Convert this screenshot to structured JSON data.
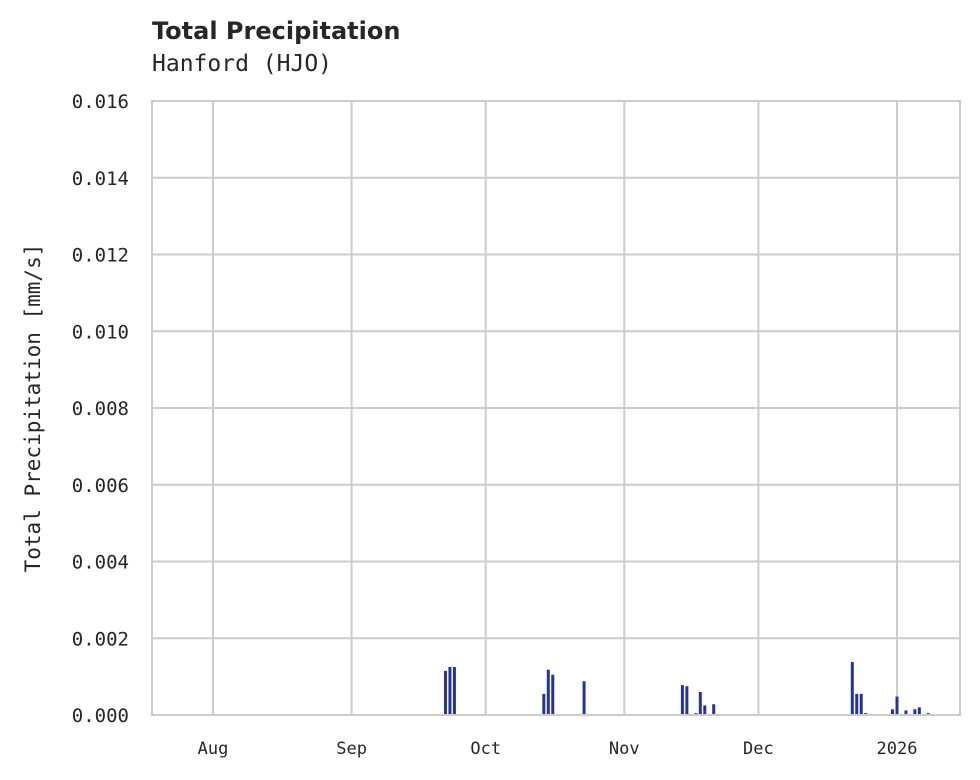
{
  "chart_data": {
    "type": "bar",
    "title": "Total Precipitation",
    "subtitle": "Hanford (HJO)",
    "xlabel": "",
    "ylabel": "Total Precipitation [mm/s]",
    "ylim": [
      0,
      0.016
    ],
    "yticks": [
      "0.000",
      "0.002",
      "0.004",
      "0.006",
      "0.008",
      "0.010",
      "0.012",
      "0.014",
      "0.016"
    ],
    "xticks": [
      "Aug",
      "Sep",
      "Oct",
      "Nov",
      "Dec",
      "2026"
    ],
    "grid": true,
    "legend": null,
    "series": [
      {
        "name": "Total Precipitation",
        "color": "#253494",
        "points": [
          {
            "date": "2025-09-22",
            "value": 0.00115
          },
          {
            "date": "2025-09-23",
            "value": 0.00125
          },
          {
            "date": "2025-09-24",
            "value": 0.00125
          },
          {
            "date": "2025-10-14",
            "value": 0.00055
          },
          {
            "date": "2025-10-15",
            "value": 0.00118
          },
          {
            "date": "2025-10-16",
            "value": 0.00105
          },
          {
            "date": "2025-10-23",
            "value": 0.00088
          },
          {
            "date": "2025-11-14",
            "value": 0.00078
          },
          {
            "date": "2025-11-15",
            "value": 0.00075
          },
          {
            "date": "2025-11-17",
            "value": 5e-05
          },
          {
            "date": "2025-11-18",
            "value": 0.0006
          },
          {
            "date": "2025-11-19",
            "value": 0.00025
          },
          {
            "date": "2025-11-21",
            "value": 0.00028
          },
          {
            "date": "2025-12-22",
            "value": 0.00138
          },
          {
            "date": "2025-12-23",
            "value": 0.00055
          },
          {
            "date": "2025-12-24",
            "value": 0.00055
          },
          {
            "date": "2025-12-25",
            "value": 5e-05
          },
          {
            "date": "2025-12-31",
            "value": 0.00015
          },
          {
            "date": "2026-01-01",
            "value": 0.00048
          },
          {
            "date": "2026-01-03",
            "value": 0.00012
          },
          {
            "date": "2026-01-05",
            "value": 0.00015
          },
          {
            "date": "2026-01-06",
            "value": 0.0002
          },
          {
            "date": "2026-01-08",
            "value": 5e-05
          }
        ]
      }
    ]
  },
  "text": {
    "title": "Total Precipitation",
    "subtitle": "Hanford (HJO)",
    "ylabel": "Total Precipitation [mm/s]"
  }
}
